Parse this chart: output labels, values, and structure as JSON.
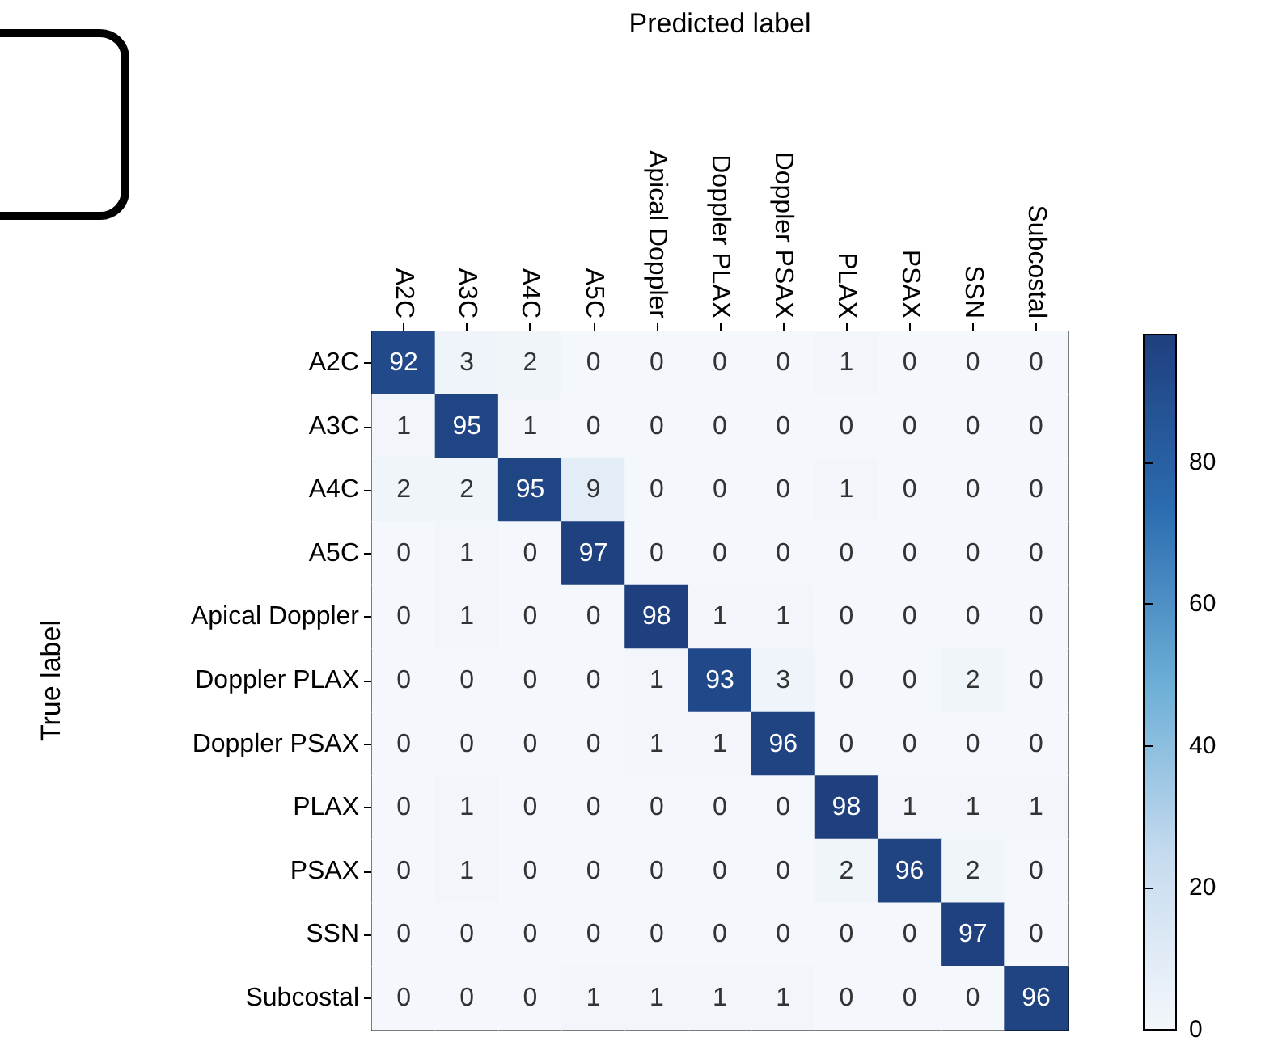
{
  "chart_data": {
    "type": "heatmap",
    "xlabel": "Predicted label",
    "ylabel": "True label",
    "categories": [
      "A2C",
      "A3C",
      "A4C",
      "A5C",
      "Apical Doppler",
      "Doppler PLAX",
      "Doppler PSAX",
      "PLAX",
      "PSAX",
      "SSN",
      "Subcostal"
    ],
    "y_categories": [
      "A2C",
      "A3C",
      "A4C",
      "A5C",
      "Apical Doppler",
      "Doppler PLAX",
      "Doppler PSAX",
      "PLAX",
      "PSAX",
      "SSN",
      "Subcostal"
    ],
    "cells": [
      [
        92,
        3,
        2,
        0,
        0,
        0,
        0,
        1,
        0,
        0,
        0
      ],
      [
        1,
        95,
        1,
        0,
        0,
        0,
        0,
        0,
        0,
        0,
        0
      ],
      [
        2,
        2,
        95,
        9,
        0,
        0,
        0,
        1,
        0,
        0,
        0
      ],
      [
        0,
        1,
        0,
        97,
        0,
        0,
        0,
        0,
        0,
        0,
        0
      ],
      [
        0,
        1,
        0,
        0,
        98,
        1,
        1,
        0,
        0,
        0,
        0
      ],
      [
        0,
        0,
        0,
        0,
        1,
        93,
        3,
        0,
        0,
        2,
        0
      ],
      [
        0,
        0,
        0,
        0,
        1,
        1,
        96,
        0,
        0,
        0,
        0
      ],
      [
        0,
        1,
        0,
        0,
        0,
        0,
        0,
        98,
        1,
        1,
        1
      ],
      [
        0,
        1,
        0,
        0,
        0,
        0,
        0,
        2,
        96,
        2,
        0
      ],
      [
        0,
        0,
        0,
        0,
        0,
        0,
        0,
        0,
        0,
        97,
        0
      ],
      [
        0,
        0,
        0,
        1,
        1,
        1,
        1,
        0,
        0,
        0,
        96
      ]
    ],
    "clim": [
      0,
      98
    ],
    "cticks": [
      0,
      20,
      40,
      60,
      80
    ],
    "data_labels": true
  }
}
